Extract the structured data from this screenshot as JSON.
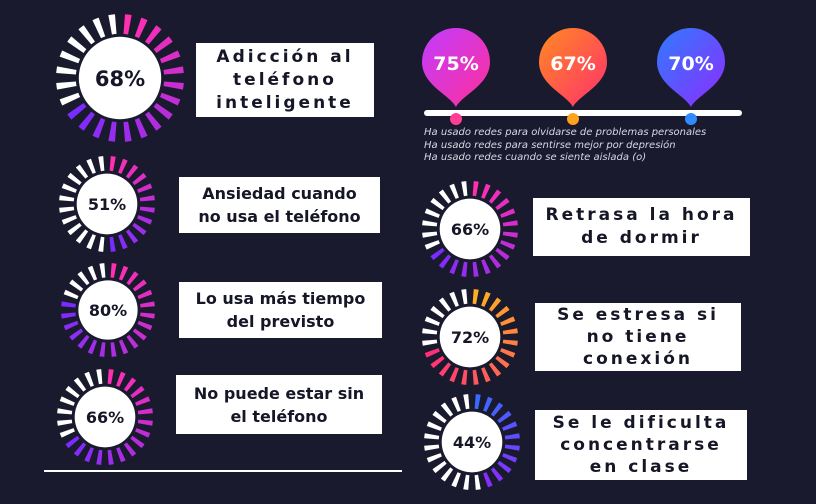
{
  "gauges": [
    {
      "id": "g1",
      "value": 68,
      "label": "68%",
      "text": "Adicción al\nteléfono\ninteligente",
      "c1": "#ff2fb0",
      "c2": "#7a2cff"
    },
    {
      "id": "g2",
      "value": 51,
      "label": "51%",
      "text": "Ansiedad cuando\nno usa el teléfono",
      "c1": "#ff2fb0",
      "c2": "#7a2cff"
    },
    {
      "id": "g3",
      "value": 80,
      "label": "80%",
      "text": "Lo usa más tiempo\ndel previsto",
      "c1": "#ff2fb0",
      "c2": "#7a2cff"
    },
    {
      "id": "g4",
      "value": 66,
      "label": "66%",
      "text": "No puede estar sin\nel teléfono",
      "c1": "#ff2fb0",
      "c2": "#7a2cff"
    },
    {
      "id": "g5",
      "value": 66,
      "label": "66%",
      "text": "Retrasa la hora\nde dormir",
      "c1": "#ff2fb0",
      "c2": "#7a2cff"
    },
    {
      "id": "g6",
      "value": 72,
      "label": "72%",
      "text": "Se estresa si\nno tiene\nconexión",
      "c1": "#ffb020",
      "c2": "#ff2f7a"
    },
    {
      "id": "g7",
      "value": 44,
      "label": "44%",
      "text": "Se le dificulta\nconcentrarse\nen clase",
      "c1": "#3a6bff",
      "c2": "#8a2cff"
    }
  ],
  "pins": [
    {
      "value": "75%",
      "c1": "#c13cff",
      "c2": "#ff2f9a",
      "dot": "#ff3f93"
    },
    {
      "value": "67%",
      "c1": "#ff8a22",
      "c2": "#ff2f6e",
      "dot": "#ffa21d"
    },
    {
      "value": "70%",
      "c1": "#2f7bff",
      "c2": "#8e2cff",
      "dot": "#2f8bff"
    }
  ],
  "legend": [
    "Ha usado redes para olvidarse de problemas personales",
    "Ha usado redes para sentirse mejor por depresión",
    "Ha usado redes cuando se siente aislada (o)"
  ],
  "colors": {
    "background": "#191a2e",
    "track": "#ffffff"
  }
}
